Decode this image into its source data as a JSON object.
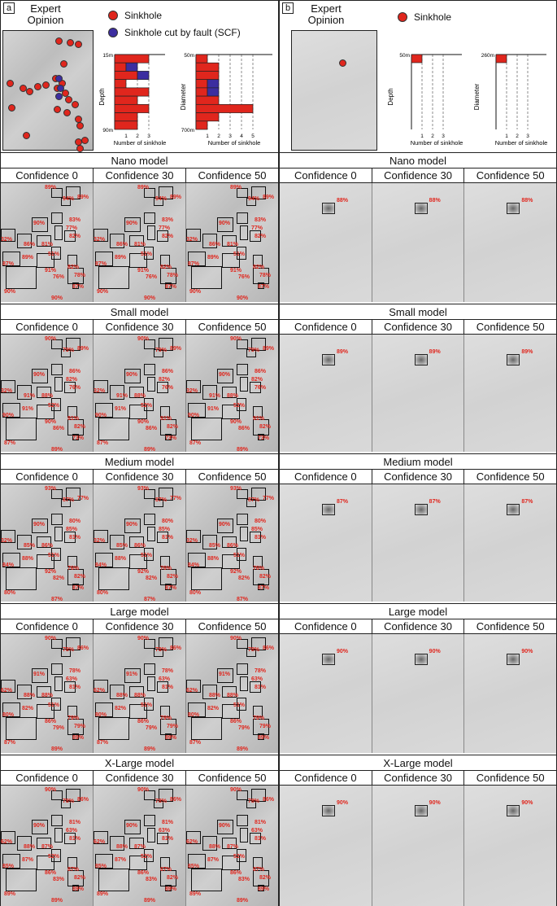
{
  "panel_a": {
    "letter": "a",
    "expert_title": "Expert\nOpinion",
    "legend": [
      {
        "label": "Sinkhole",
        "color": "#e0261d"
      },
      {
        "label": "Sinkhole cut by fault (SCF)",
        "color": "#3c2ea0"
      }
    ],
    "depth_chart": {
      "ylabel": "Depth",
      "top_label": "15m",
      "bottom_label": "90m",
      "xlabel": "Number of sinkhole",
      "ticks": [
        "1",
        "2",
        "3"
      ],
      "bars": [
        {
          "sinkhole": 3,
          "scf": 0
        },
        {
          "sinkhole": 1,
          "scf": 1
        },
        {
          "sinkhole": 2,
          "scf": 1
        },
        {
          "sinkhole": 1,
          "scf": 0
        },
        {
          "sinkhole": 3,
          "scf": 0
        },
        {
          "sinkhole": 2,
          "scf": 0
        },
        {
          "sinkhole": 3,
          "scf": 0
        },
        {
          "sinkhole": 2,
          "scf": 0
        },
        {
          "sinkhole": 2,
          "scf": 0
        }
      ]
    },
    "diameter_chart": {
      "ylabel": "Diameter",
      "top_label": "50m",
      "bottom_label": "700m",
      "xlabel": "Number of sinkhole",
      "ticks": [
        "1",
        "2",
        "3",
        "4",
        "5"
      ],
      "bars": [
        {
          "sinkhole": 1,
          "scf": 0
        },
        {
          "sinkhole": 2,
          "scf": 0
        },
        {
          "sinkhole": 2,
          "scf": 0
        },
        {
          "sinkhole": 1,
          "scf": 1
        },
        {
          "sinkhole": 1,
          "scf": 1
        },
        {
          "sinkhole": 2,
          "scf": 0
        },
        {
          "sinkhole": 5,
          "scf": 0
        },
        {
          "sinkhole": 2,
          "scf": 0
        },
        {
          "sinkhole": 1,
          "scf": 0
        }
      ]
    },
    "models": [
      {
        "name": "Nano model",
        "conf": [
          "Confidence 0",
          "Confidence 30",
          "Confidence 50"
        ],
        "pcts": [
          "89%",
          "94%",
          "89%",
          "90%",
          "83%",
          "32%",
          "86%",
          "81%",
          "77%",
          "51%",
          "82%",
          "87%",
          "89%",
          "76%",
          "91%",
          "82%",
          "78%",
          "90%",
          "87%",
          "90%"
        ]
      },
      {
        "name": "Small model",
        "conf": [
          "Confidence 0",
          "Confidence 30",
          "Confidence 50"
        ],
        "pcts": [
          "90%",
          "79%",
          "89%",
          "90%",
          "86%",
          "32%",
          "91%",
          "88%",
          "82%",
          "52%",
          "76%",
          "90%",
          "91%",
          "86%",
          "90%",
          "91%",
          "82%",
          "87%",
          "73%",
          "89%"
        ]
      },
      {
        "name": "Medium model",
        "conf": [
          "Confidence 0",
          "Confidence 30",
          "Confidence 50"
        ],
        "pcts": [
          "93%",
          "87%",
          "77%",
          "90%",
          "80%",
          "32%",
          "85%",
          "86%",
          "85%",
          "51%",
          "81%",
          "84%",
          "88%",
          "82%",
          "92%",
          "76%",
          "82%",
          "80%",
          "87%",
          "87%"
        ]
      },
      {
        "name": "Large model",
        "conf": [
          "Confidence 0",
          "Confidence 30",
          "Confidence 50"
        ],
        "pcts": [
          "90%",
          "78%",
          "86%",
          "91%",
          "78%",
          "62%",
          "88%",
          "88%",
          "63%",
          "51%",
          "81%",
          "80%",
          "82%",
          "79%",
          "86%",
          "79%",
          "79%",
          "87%",
          "89%",
          "89%"
        ]
      },
      {
        "name": "X-Large model",
        "conf": [
          "Confidence 0",
          "Confidence 30",
          "Confidence 50"
        ],
        "pcts": [
          "90%",
          "78%",
          "86%",
          "90%",
          "81%",
          "62%",
          "88%",
          "87%",
          "63%",
          "52%",
          "81%",
          "85%",
          "87%",
          "83%",
          "86%",
          "87%",
          "82%",
          "89%",
          "89%",
          "89%"
        ]
      }
    ]
  },
  "panel_b": {
    "letter": "b",
    "expert_title": "Expert\nOpinion",
    "legend": [
      {
        "label": "Sinkhole",
        "color": "#e0261d"
      }
    ],
    "depth_chart": {
      "ylabel": "Depth",
      "top_label": "50m",
      "xlabel": "Number of sinkhole",
      "ticks": [
        "1",
        "2",
        "3"
      ],
      "value": 1
    },
    "diameter_chart": {
      "ylabel": "Diameter",
      "top_label": "260m",
      "xlabel": "Number of sinkhole",
      "ticks": [
        "1",
        "2",
        "3"
      ],
      "value": 1
    },
    "models": [
      {
        "name": "Nano model",
        "conf": [
          "Confidence 0",
          "Confidence 30",
          "Confidence 50"
        ],
        "pct": "88%"
      },
      {
        "name": "Small model",
        "conf": [
          "Confidence 0",
          "Confidence 30",
          "Confidence 50"
        ],
        "pct": "89%"
      },
      {
        "name": "Medium model",
        "conf": [
          "Confidence 0",
          "Confidence 30",
          "Confidence 50"
        ],
        "pct": "87%"
      },
      {
        "name": "Large model",
        "conf": [
          "Confidence 0",
          "Confidence 30",
          "Confidence 50"
        ],
        "pct": "90%"
      },
      {
        "name": "X-Large model",
        "conf": [
          "Confidence 0",
          "Confidence 30",
          "Confidence 50"
        ],
        "pct": "90%"
      }
    ]
  }
}
